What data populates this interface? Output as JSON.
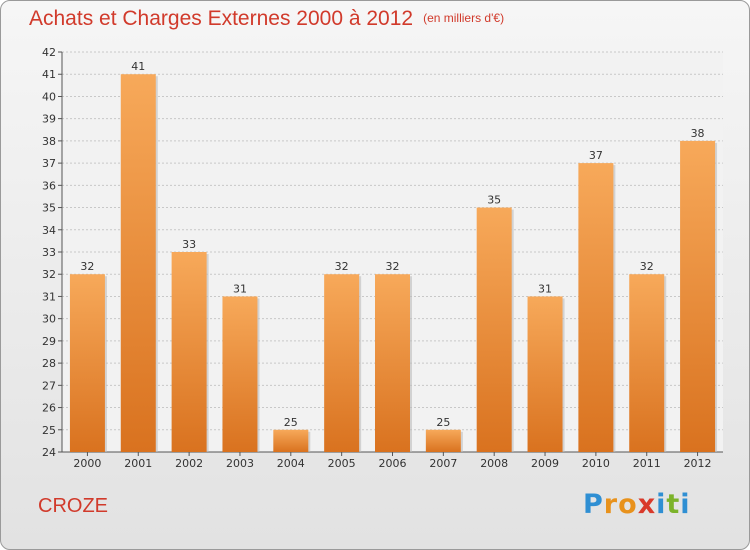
{
  "chart_data": {
    "type": "bar",
    "title": "Achats et Charges Externes 2000 à 2012",
    "subtitle": "(en milliers d'€)",
    "xlabel": "",
    "ylabel": "",
    "categories": [
      "2000",
      "2001",
      "2002",
      "2003",
      "2004",
      "2005",
      "2006",
      "2007",
      "2008",
      "2009",
      "2010",
      "2011",
      "2012"
    ],
    "values": [
      32,
      41,
      33,
      31,
      25,
      32,
      32,
      25,
      35,
      31,
      37,
      32,
      38
    ],
    "ylim": [
      24,
      42
    ],
    "yticks": [
      24,
      25,
      26,
      27,
      28,
      29,
      30,
      31,
      32,
      33,
      34,
      35,
      36,
      37,
      38,
      39,
      40,
      41,
      42
    ],
    "grid": true,
    "legend": "none",
    "bar_color_top": "#f7a95a",
    "bar_color_bottom": "#d9721f"
  },
  "footer": {
    "label": "CROZE"
  },
  "logo": {
    "text": "Proxiti",
    "letters": [
      "P",
      "r",
      "o",
      "x",
      "i",
      "t",
      "i"
    ],
    "colors": [
      "#2f8fd3",
      "#e8921c",
      "#e8921c",
      "#d93a2b",
      "#2f8fd3",
      "#7cb32a",
      "#2f8fd3"
    ]
  }
}
